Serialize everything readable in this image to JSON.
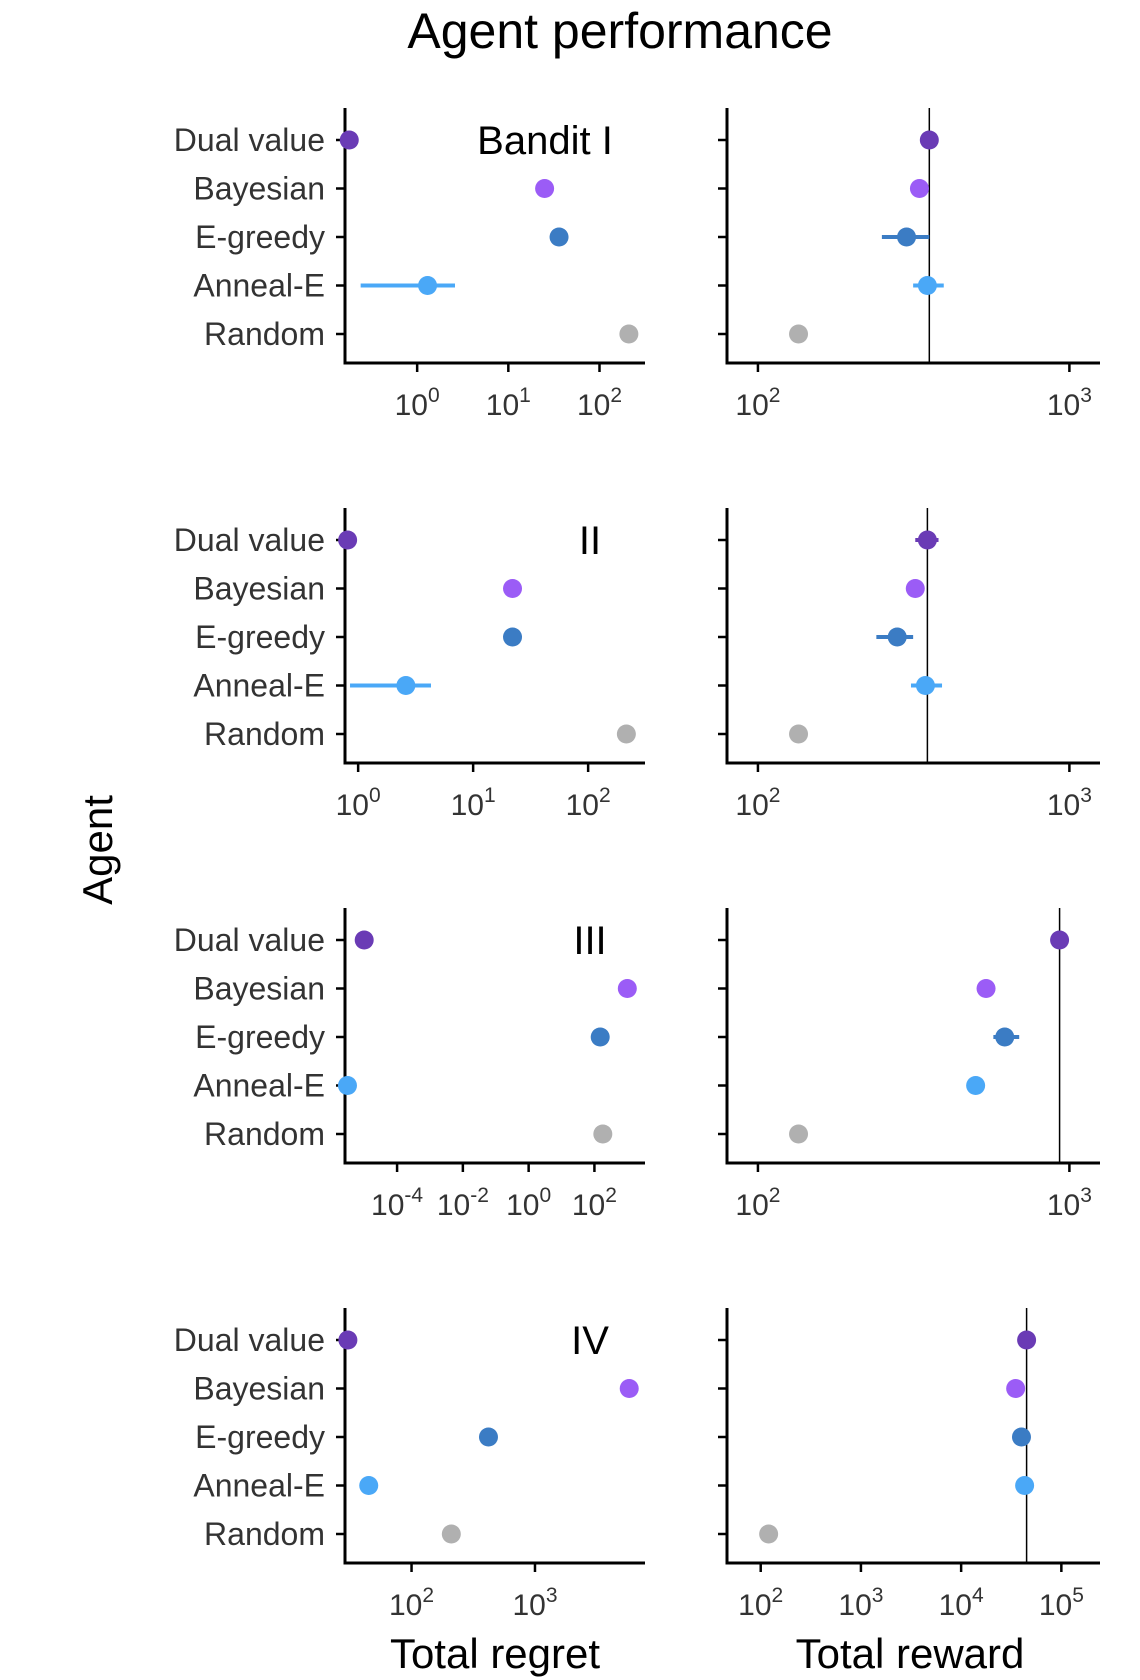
{
  "title": "Agent performance",
  "ylabel": "Agent",
  "colors": {
    "Dual value": "#6a3bb5",
    "Bayesian": "#9b5cf6",
    "E-greedy": "#3b7cc4",
    "Anneal-E": "#4aa8f7",
    "Random": "#b0b0b0"
  },
  "chart_data": {
    "type": "scatter",
    "agents": [
      "Dual value",
      "Bayesian",
      "E-greedy",
      "Anneal-E",
      "Random"
    ],
    "xlabels": [
      "Total regret",
      "Total reward"
    ],
    "x_scale": "log10",
    "bandits": [
      {
        "label": "Bandit I",
        "regret": {
          "xlim": [
            0.17,
            300
          ],
          "ticks": [
            0,
            1,
            2
          ],
          "tick_labels": [
            "10^0",
            "10^1",
            "10^2"
          ],
          "points": [
            {
              "agent": "Dual value",
              "value": 0.18
            },
            {
              "agent": "Bayesian",
              "value": 25
            },
            {
              "agent": "E-greedy",
              "value": 36,
              "lo": 33,
              "hi": 40
            },
            {
              "agent": "Anneal-E",
              "value": 1.3,
              "lo": 0.24,
              "hi": 2.6
            },
            {
              "agent": "Random",
              "value": 210
            }
          ]
        },
        "reward": {
          "xlim": [
            95,
            1050
          ],
          "ticks": [
            2,
            3
          ],
          "tick_labels": [
            "10^2",
            "10^3"
          ],
          "ref": 355,
          "points": [
            {
              "agent": "Dual value",
              "value": 355
            },
            {
              "agent": "Bayesian",
              "value": 330
            },
            {
              "agent": "E-greedy",
              "value": 300,
              "lo": 250,
              "hi": 355
            },
            {
              "agent": "Anneal-E",
              "value": 350,
              "lo": 315,
              "hi": 395
            },
            {
              "agent": "Random",
              "value": 135,
              "lo": 128,
              "hi": 142
            }
          ]
        }
      },
      {
        "label": "II",
        "regret": {
          "xlim": [
            0.8,
            300
          ],
          "ticks": [
            0,
            1,
            2
          ],
          "tick_labels": [
            "10^0",
            "10^1",
            "10^2"
          ],
          "points": [
            {
              "agent": "Dual value",
              "value": 0.81
            },
            {
              "agent": "Bayesian",
              "value": 22,
              "lo": 20,
              "hi": 24
            },
            {
              "agent": "E-greedy",
              "value": 22,
              "lo": 20,
              "hi": 24
            },
            {
              "agent": "Anneal-E",
              "value": 2.6,
              "lo": 0.85,
              "hi": 4.3
            },
            {
              "agent": "Random",
              "value": 215
            }
          ]
        },
        "reward": {
          "xlim": [
            95,
            1050
          ],
          "ticks": [
            2,
            3
          ],
          "tick_labels": [
            "10^2",
            "10^3"
          ],
          "ref": 350,
          "points": [
            {
              "agent": "Dual value",
              "value": 350,
              "lo": 320,
              "hi": 380
            },
            {
              "agent": "Bayesian",
              "value": 320
            },
            {
              "agent": "E-greedy",
              "value": 280,
              "lo": 240,
              "hi": 315
            },
            {
              "agent": "Anneal-E",
              "value": 345,
              "lo": 310,
              "hi": 390
            },
            {
              "agent": "Random",
              "value": 135,
              "lo": 128,
              "hi": 142
            }
          ]
        }
      },
      {
        "label": "III",
        "regret": {
          "xlim": [
            3e-06,
            3000
          ],
          "ticks": [
            -4,
            -2,
            0,
            2
          ],
          "tick_labels": [
            "10^-4",
            "10^-2",
            "10^0",
            "10^2"
          ],
          "points": [
            {
              "agent": "Dual value",
              "value": 1e-05
            },
            {
              "agent": "Bayesian",
              "value": 1000
            },
            {
              "agent": "E-greedy",
              "value": 150
            },
            {
              "agent": "Anneal-E",
              "value": 3.1e-06
            },
            {
              "agent": "Random",
              "value": 180
            }
          ]
        },
        "reward": {
          "xlim": [
            95,
            1050
          ],
          "ticks": [
            2,
            3
          ],
          "tick_labels": [
            "10^2",
            "10^3"
          ],
          "ref": 930,
          "points": [
            {
              "agent": "Dual value",
              "value": 930
            },
            {
              "agent": "Bayesian",
              "value": 540
            },
            {
              "agent": "E-greedy",
              "value": 620,
              "lo": 570,
              "hi": 690
            },
            {
              "agent": "Anneal-E",
              "value": 500
            },
            {
              "agent": "Random",
              "value": 135,
              "lo": 128,
              "hi": 142
            }
          ]
        }
      },
      {
        "label": "IV",
        "regret": {
          "xlim": [
            30,
            7500
          ],
          "ticks": [
            2,
            3
          ],
          "tick_labels": [
            "10^2",
            "10^3"
          ],
          "points": [
            {
              "agent": "Dual value",
              "value": 30.5
            },
            {
              "agent": "Bayesian",
              "value": 5800
            },
            {
              "agent": "E-greedy",
              "value": 420
            },
            {
              "agent": "Anneal-E",
              "value": 45
            },
            {
              "agent": "Random",
              "value": 210
            }
          ]
        },
        "reward": {
          "xlim": [
            80,
            140000
          ],
          "ticks": [
            2,
            3,
            4,
            5
          ],
          "tick_labels": [
            "10^2",
            "10^3",
            "10^4",
            "10^5"
          ],
          "ref": 45000,
          "points": [
            {
              "agent": "Dual value",
              "value": 45000
            },
            {
              "agent": "Bayesian",
              "value": 35000
            },
            {
              "agent": "E-greedy",
              "value": 40000
            },
            {
              "agent": "Anneal-E",
              "value": 43000
            },
            {
              "agent": "Random",
              "value": 120
            }
          ]
        }
      }
    ]
  }
}
